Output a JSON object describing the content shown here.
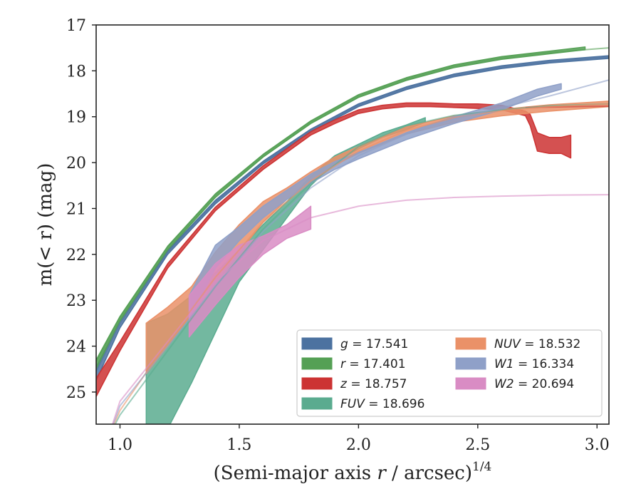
{
  "chart_data": {
    "type": "line",
    "xlabel": "(Semi-major axis r / arcsec)",
    "xlabel_sup": "1/4",
    "ylabel": "m(< r) (mag)",
    "xlim": [
      0.9,
      3.05
    ],
    "ylim": [
      25.7,
      17.0
    ],
    "y_inverted": true,
    "x_ticks": [
      1.0,
      1.5,
      2.0,
      2.5,
      3.0
    ],
    "x_tick_labels": [
      "1.0",
      "1.5",
      "2.0",
      "2.5",
      "3.0"
    ],
    "y_ticks": [
      17,
      18,
      19,
      20,
      21,
      22,
      23,
      24,
      25
    ],
    "y_tick_labels": [
      "17",
      "18",
      "19",
      "20",
      "21",
      "22",
      "23",
      "24",
      "25"
    ],
    "grid": false,
    "legend_position": "lower-right",
    "series": [
      {
        "name": "g",
        "label": "g = 17.541",
        "color": "#4c72a0",
        "model": [
          [
            0.9,
            24.55
          ],
          [
            1.0,
            23.5
          ],
          [
            1.2,
            21.95
          ],
          [
            1.4,
            20.85
          ],
          [
            1.6,
            20.0
          ],
          [
            1.8,
            19.3
          ],
          [
            2.0,
            18.75
          ],
          [
            2.2,
            18.38
          ],
          [
            2.4,
            18.1
          ],
          [
            2.6,
            17.92
          ],
          [
            2.8,
            17.8
          ],
          [
            3.05,
            17.7
          ]
        ],
        "band": [
          [
            0.9,
            24.75,
            24.45
          ],
          [
            1.0,
            23.6,
            23.45
          ],
          [
            1.2,
            22.0,
            21.92
          ],
          [
            1.4,
            20.9,
            20.82
          ],
          [
            1.6,
            20.03,
            19.97
          ],
          [
            1.8,
            19.33,
            19.27
          ],
          [
            2.0,
            18.78,
            18.72
          ],
          [
            2.2,
            18.41,
            18.35
          ],
          [
            2.4,
            18.13,
            18.07
          ],
          [
            2.6,
            17.95,
            17.89
          ],
          [
            2.8,
            17.83,
            17.77
          ],
          [
            3.05,
            17.73,
            17.67
          ]
        ]
      },
      {
        "name": "r",
        "label": "r = 17.401",
        "color": "#55a055",
        "model": [
          [
            0.9,
            24.35
          ],
          [
            1.0,
            23.4
          ],
          [
            1.2,
            21.85
          ],
          [
            1.4,
            20.72
          ],
          [
            1.6,
            19.85
          ],
          [
            1.8,
            19.12
          ],
          [
            2.0,
            18.55
          ],
          [
            2.2,
            18.18
          ],
          [
            2.4,
            17.9
          ],
          [
            2.6,
            17.72
          ],
          [
            2.8,
            17.6
          ],
          [
            3.05,
            17.5
          ]
        ],
        "band": [
          [
            0.9,
            24.5,
            24.3
          ],
          [
            1.0,
            23.45,
            23.35
          ],
          [
            1.2,
            21.9,
            21.82
          ],
          [
            1.4,
            20.76,
            20.68
          ],
          [
            1.6,
            19.88,
            19.82
          ],
          [
            1.8,
            19.15,
            19.09
          ],
          [
            2.0,
            18.58,
            18.52
          ],
          [
            2.2,
            18.21,
            18.15
          ],
          [
            2.4,
            17.93,
            17.87
          ],
          [
            2.6,
            17.75,
            17.69
          ],
          [
            2.8,
            17.63,
            17.57
          ],
          [
            2.95,
            17.54,
            17.48
          ]
        ]
      },
      {
        "name": "z",
        "label": "z = 18.757",
        "color": "#cc3333",
        "model": [
          [
            2.7,
            18.8
          ],
          [
            2.9,
            18.78
          ],
          [
            3.05,
            18.77
          ]
        ],
        "band": [
          [
            0.9,
            25.1,
            24.7
          ],
          [
            1.0,
            24.1,
            23.9
          ],
          [
            1.2,
            22.3,
            22.2
          ],
          [
            1.4,
            21.05,
            20.97
          ],
          [
            1.6,
            20.15,
            20.07
          ],
          [
            1.8,
            19.4,
            19.32
          ],
          [
            1.9,
            19.15,
            19.07
          ],
          [
            2.0,
            18.93,
            18.85
          ],
          [
            2.1,
            18.83,
            18.75
          ],
          [
            2.2,
            18.78,
            18.7
          ],
          [
            2.3,
            18.78,
            18.7
          ],
          [
            2.4,
            18.8,
            18.72
          ],
          [
            2.5,
            18.82,
            18.72
          ],
          [
            2.6,
            18.85,
            18.75
          ],
          [
            2.7,
            18.98,
            18.88
          ],
          [
            2.72,
            19.2,
            18.95
          ],
          [
            2.75,
            19.75,
            19.35
          ],
          [
            2.8,
            19.8,
            19.45
          ],
          [
            2.85,
            19.8,
            19.45
          ],
          [
            2.89,
            19.9,
            19.4
          ]
        ]
      },
      {
        "name": "FUV",
        "label": "FUV = 18.696",
        "color": "#5aab8f",
        "model": [
          [
            0.95,
            26.0
          ],
          [
            1.0,
            25.5
          ],
          [
            1.2,
            24.1
          ],
          [
            1.4,
            22.7
          ],
          [
            1.6,
            21.45
          ],
          [
            1.8,
            20.45
          ],
          [
            2.0,
            19.65
          ],
          [
            2.2,
            19.2
          ],
          [
            2.4,
            18.97
          ],
          [
            2.6,
            18.85
          ],
          [
            2.8,
            18.76
          ],
          [
            3.05,
            18.72
          ]
        ],
        "band": [
          [
            1.11,
            26.0,
            23.5
          ],
          [
            1.2,
            25.8,
            23.3
          ],
          [
            1.3,
            24.8,
            22.9
          ],
          [
            1.4,
            23.7,
            22.4
          ],
          [
            1.5,
            22.6,
            21.9
          ],
          [
            1.6,
            21.9,
            21.35
          ],
          [
            1.7,
            21.2,
            20.85
          ],
          [
            1.8,
            20.5,
            20.3
          ],
          [
            1.9,
            20.0,
            19.85
          ],
          [
            2.0,
            19.7,
            19.6
          ],
          [
            2.1,
            19.45,
            19.35
          ],
          [
            2.2,
            19.28,
            19.18
          ],
          [
            2.28,
            19.12,
            19.02
          ]
        ]
      },
      {
        "name": "NUV",
        "label": "NUV = 18.532",
        "color": "#ea9168",
        "model": [
          [
            0.95,
            26.0
          ],
          [
            1.0,
            25.4
          ],
          [
            1.2,
            23.9
          ],
          [
            1.4,
            22.5
          ],
          [
            1.6,
            21.3
          ],
          [
            1.8,
            20.4
          ],
          [
            2.0,
            19.75
          ],
          [
            2.2,
            19.3
          ],
          [
            2.4,
            19.02
          ],
          [
            2.6,
            18.87
          ],
          [
            2.8,
            18.78
          ],
          [
            3.05,
            18.72
          ]
        ],
        "band": [
          [
            1.11,
            24.6,
            23.5
          ],
          [
            1.2,
            24.0,
            23.15
          ],
          [
            1.3,
            23.3,
            22.7
          ],
          [
            1.4,
            22.6,
            21.95
          ],
          [
            1.5,
            21.95,
            21.35
          ],
          [
            1.6,
            21.3,
            20.85
          ],
          [
            1.7,
            20.8,
            20.55
          ],
          [
            1.8,
            20.4,
            20.2
          ],
          [
            1.9,
            20.05,
            19.88
          ],
          [
            2.0,
            19.8,
            19.65
          ],
          [
            2.2,
            19.38,
            19.22
          ],
          [
            2.4,
            19.12,
            18.98
          ],
          [
            2.6,
            18.98,
            18.84
          ],
          [
            2.8,
            18.88,
            18.74
          ],
          [
            3.05,
            18.78,
            18.66
          ]
        ]
      },
      {
        "name": "W1",
        "label": "W1 = 16.334",
        "color": "#8fa0c8",
        "model": [
          [
            0.95,
            26.0
          ],
          [
            1.0,
            25.3
          ],
          [
            1.2,
            24.0
          ],
          [
            1.4,
            22.7
          ],
          [
            1.6,
            21.5
          ],
          [
            1.8,
            20.55
          ],
          [
            2.0,
            19.85
          ],
          [
            2.2,
            19.38
          ],
          [
            2.4,
            19.05
          ],
          [
            2.6,
            18.8
          ],
          [
            2.8,
            18.55
          ],
          [
            3.05,
            18.2
          ]
        ],
        "band": [
          [
            1.29,
            23.4,
            22.9
          ],
          [
            1.4,
            22.3,
            21.8
          ],
          [
            1.5,
            21.7,
            21.4
          ],
          [
            1.6,
            21.2,
            20.95
          ],
          [
            1.7,
            20.8,
            20.6
          ],
          [
            1.8,
            20.45,
            20.25
          ],
          [
            1.9,
            20.15,
            19.98
          ],
          [
            2.0,
            19.92,
            19.78
          ],
          [
            2.2,
            19.5,
            19.35
          ],
          [
            2.4,
            19.15,
            19.0
          ],
          [
            2.6,
            18.85,
            18.7
          ],
          [
            2.75,
            18.55,
            18.4
          ],
          [
            2.85,
            18.4,
            18.28
          ]
        ]
      },
      {
        "name": "W2",
        "label": "W2 = 20.694",
        "color": "#d98cc4",
        "model": [
          [
            0.95,
            26.0
          ],
          [
            1.0,
            25.2
          ],
          [
            1.2,
            23.9
          ],
          [
            1.4,
            22.6
          ],
          [
            1.6,
            21.7
          ],
          [
            1.8,
            21.2
          ],
          [
            2.0,
            20.95
          ],
          [
            2.2,
            20.82
          ],
          [
            2.4,
            20.76
          ],
          [
            2.6,
            20.73
          ],
          [
            2.8,
            20.71
          ],
          [
            3.05,
            20.7
          ]
        ],
        "band": [
          [
            1.29,
            23.8,
            22.9
          ],
          [
            1.4,
            23.1,
            22.2
          ],
          [
            1.5,
            22.5,
            21.8
          ],
          [
            1.6,
            22.0,
            21.6
          ],
          [
            1.7,
            21.65,
            21.35
          ],
          [
            1.8,
            21.45,
            20.95
          ]
        ]
      }
    ]
  },
  "legend": {
    "items": [
      {
        "prefix": "g",
        "value": " = 17.541",
        "color": "#4c72a0"
      },
      {
        "prefix": "r",
        "value": " = 17.401",
        "color": "#55a055"
      },
      {
        "prefix": "z",
        "value": " = 18.757",
        "color": "#cc3333"
      },
      {
        "prefix": "FUV",
        "value": " = 18.696",
        "color": "#5aab8f"
      },
      {
        "prefix": "NUV",
        "value": " = 18.532",
        "color": "#ea9168"
      },
      {
        "prefix": "W1",
        "value": " = 16.334",
        "color": "#8fa0c8"
      },
      {
        "prefix": "W2",
        "value": " = 20.694",
        "color": "#d98cc4"
      }
    ]
  }
}
